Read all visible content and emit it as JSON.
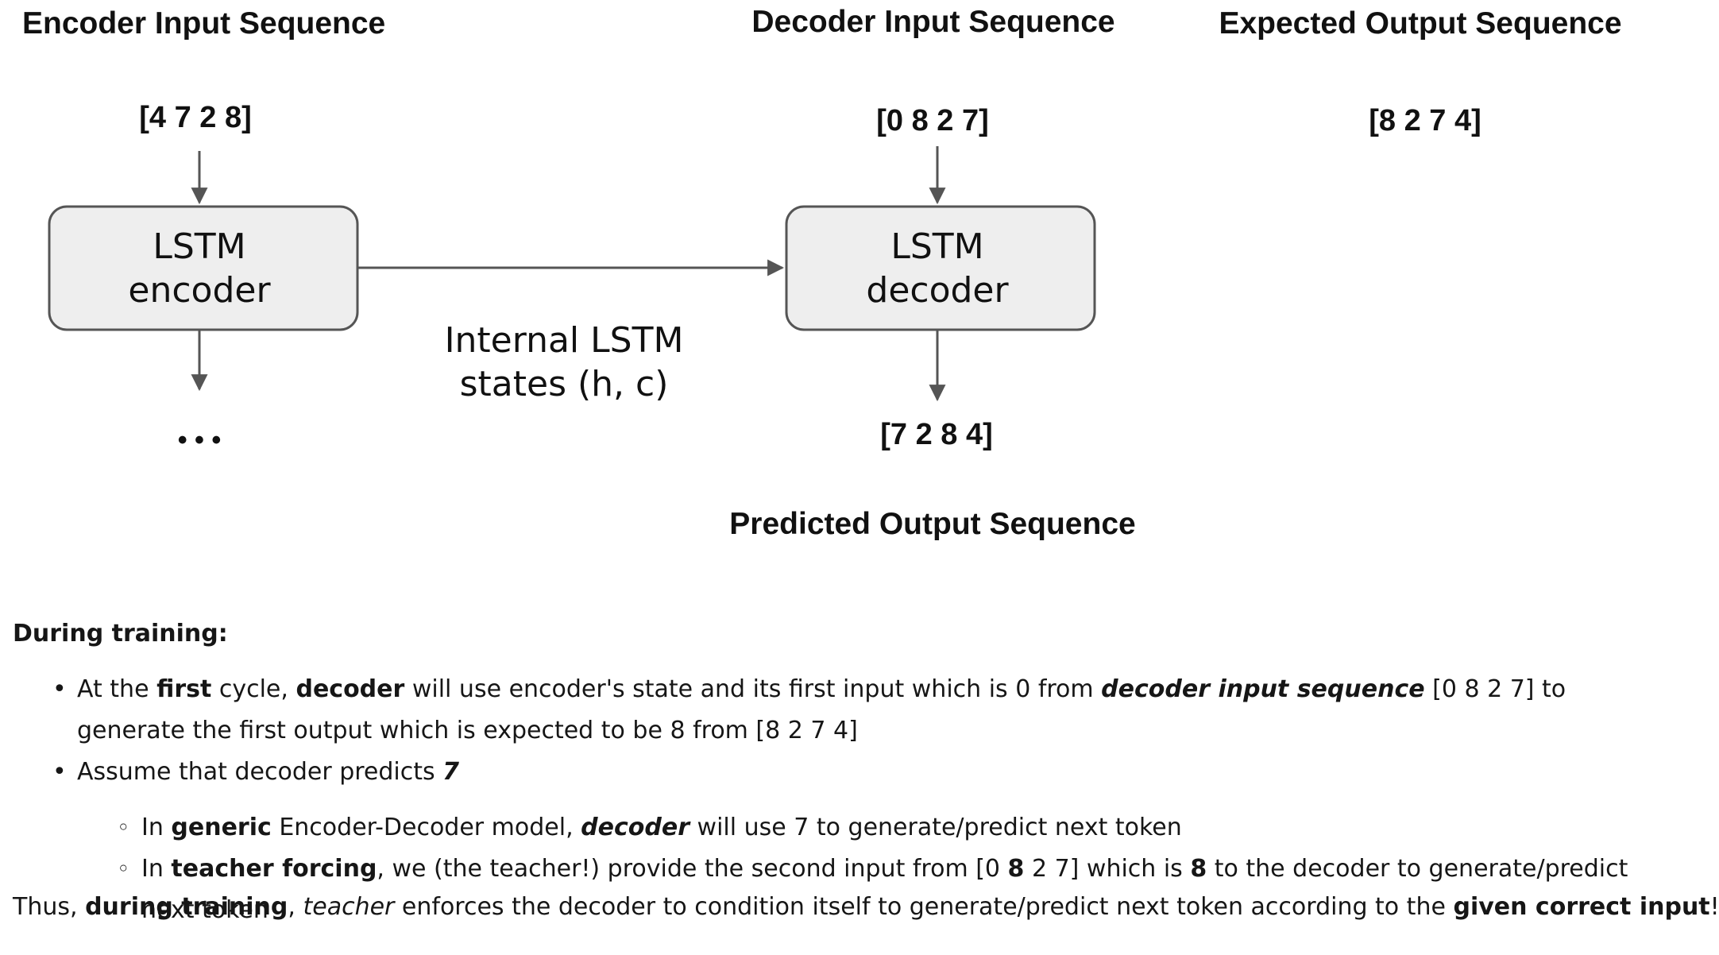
{
  "diagram": {
    "encoder_heading": "Encoder Input Sequence",
    "decoder_heading": "Decoder Input Sequence",
    "expected_heading": "Expected Output Sequence",
    "encoder_input": "[4 7 2 8]",
    "decoder_input": "[0 8 2 7]",
    "expected_output": "[8 2 7 4]",
    "encoder_box": [
      "LSTM",
      "encoder"
    ],
    "decoder_box": [
      "LSTM",
      "decoder"
    ],
    "states_label": [
      "Internal LSTM",
      "states (h, c)"
    ],
    "encoder_output": "• • •",
    "predicted_output": "[7 2 8 4]",
    "predicted_heading": "Predicted Output Sequence",
    "colors": {
      "box_fill": "#eeeeee",
      "box_stroke": "#555555",
      "arrow": "#555555"
    }
  },
  "text": {
    "during_training": "During training:",
    "b1": {
      "t1": "At the ",
      "b_first": "first",
      "t2": " cycle, ",
      "b_decoder": "decoder",
      "t3": " will use encoder's state and its first input which is 0 from ",
      "bi_dis": "decoder input sequence",
      "t4": " [0 8 2 7] to generate the first output which is expected to be 8 from [8 2 7 4]"
    },
    "b2": {
      "t1": "Assume that decoder predicts ",
      "bi_7": "7"
    },
    "s1": {
      "t1": "In ",
      "b_generic": "generic",
      "t2": " Encoder-Decoder model, ",
      "bi_decoder": "decoder",
      "t3": " will use 7 to generate/predict next token"
    },
    "s2": {
      "t1": "In ",
      "b_tf": "teacher forcing",
      "t2": ", we (the teacher!) provide the second input from [0 ",
      "b_8a": "8",
      "t3": " 2 7] which is ",
      "b_8b": "8",
      "t4": " to the decoder to generate/predict next token"
    },
    "concl": {
      "t1": "Thus, ",
      "b_dt": "during training",
      "t2": ", ",
      "i_teacher": "teacher",
      "t3": " enforces the decoder to condition itself to generate/predict next token according to the ",
      "b_gci": "given correct input",
      "t4": "!"
    }
  }
}
